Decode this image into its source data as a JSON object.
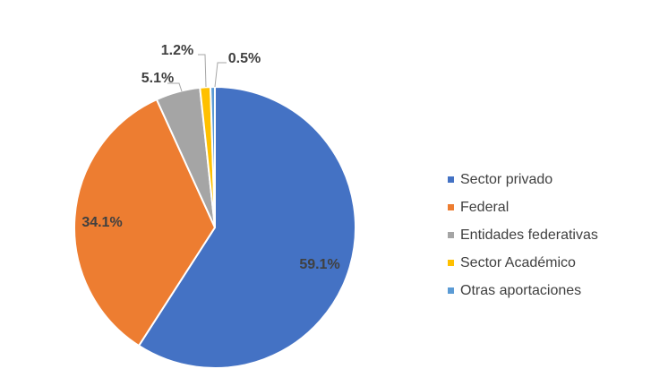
{
  "chart_data": {
    "type": "pie",
    "title": "",
    "categories": [
      "Sector privado",
      "Federal",
      "Entidades federativas",
      "Sector Académico",
      "Otras aportaciones"
    ],
    "values": [
      59.1,
      34.1,
      5.1,
      1.2,
      0.5
    ],
    "data_labels": [
      "59.1%",
      "34.1%",
      "5.1%",
      "1.2%",
      "0.5%"
    ],
    "colors": [
      "#4472C4",
      "#ED7D31",
      "#A5A5A5",
      "#FFC000",
      "#5B9BD5"
    ],
    "legend_position": "right",
    "start_angle": "12 o'clock, clockwise"
  }
}
